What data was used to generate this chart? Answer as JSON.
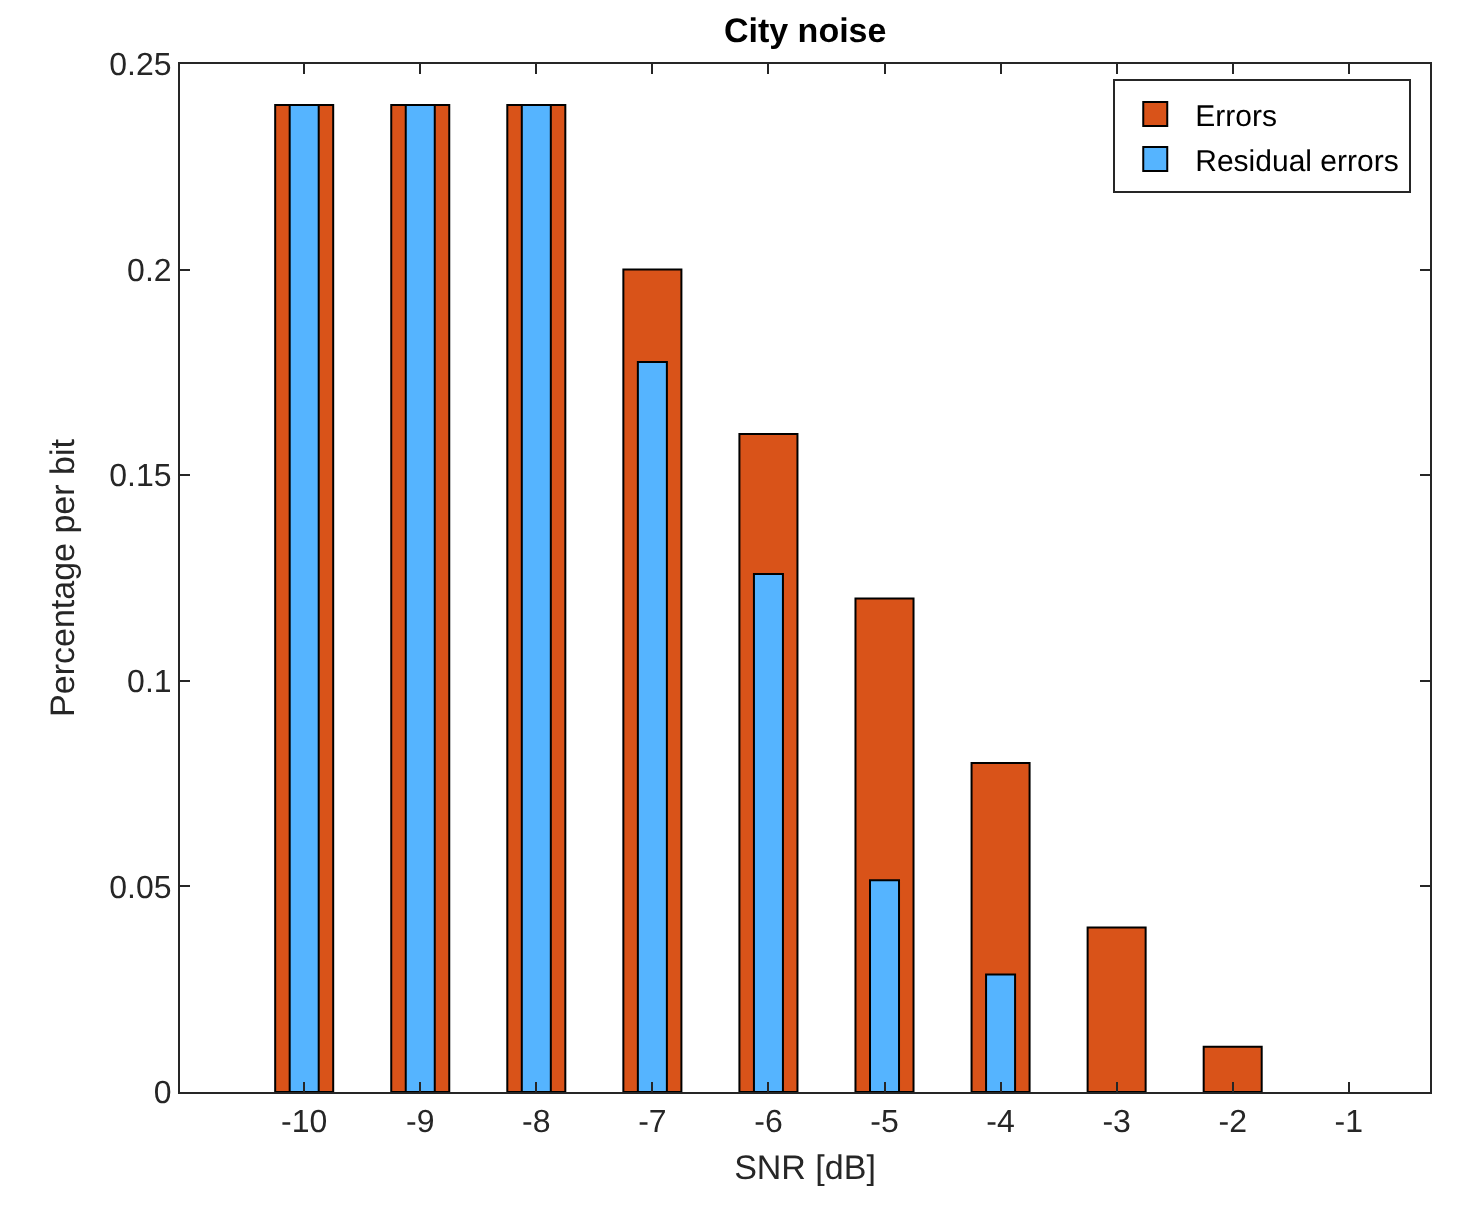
{
  "chart_data": {
    "type": "bar",
    "title": "City noise",
    "xlabel": "SNR [dB]",
    "ylabel": "Percentage per bit",
    "x": [
      -10,
      -9,
      -8,
      -7,
      -6,
      -5,
      -4,
      -3,
      -2,
      -1
    ],
    "series": [
      {
        "name": "Errors",
        "color": "#d95319",
        "values": [
          0.24,
          0.24,
          0.24,
          0.2,
          0.16,
          0.12,
          0.08,
          0.04,
          0.011,
          0
        ]
      },
      {
        "name": "Residual errors",
        "color": "#55b4ff",
        "values": [
          0.24,
          0.24,
          0.24,
          0.1775,
          0.126,
          0.0515,
          0.0286,
          0,
          0,
          0
        ]
      }
    ],
    "xlim": [
      -11.07,
      -0.3
    ],
    "xticks": [
      -10,
      -9,
      -8,
      -7,
      -6,
      -5,
      -4,
      -3,
      -2,
      -1
    ],
    "ylim": [
      0,
      0.25
    ],
    "yticks": [
      {
        "value": 0,
        "label": "0"
      },
      0.05,
      0.1,
      0.15,
      0.2,
      0.25
    ],
    "legend": "top right"
  }
}
